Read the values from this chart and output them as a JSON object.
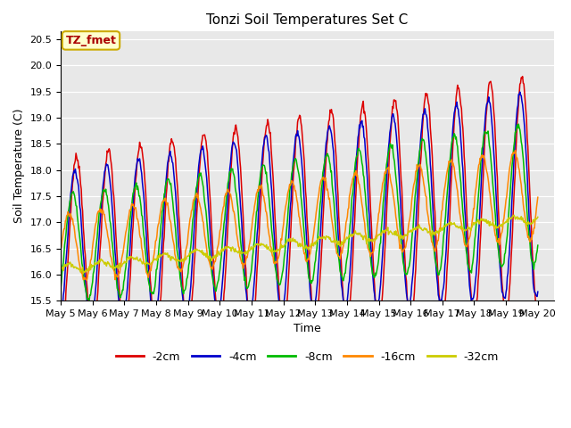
{
  "title": "Tonzi Soil Temperatures Set C",
  "xlabel": "Time",
  "ylabel": "Soil Temperature (C)",
  "ylim": [
    15.5,
    20.65
  ],
  "xlim_days": [
    0,
    15.5
  ],
  "plot_bg": "#e8e8e8",
  "fig_bg": "#ffffff",
  "grid_color": "white",
  "annotation_text": "TZ_fmet",
  "annotation_bg": "#ffffcc",
  "annotation_border": "#ccaa00",
  "annotation_text_color": "#aa0000",
  "series": [
    {
      "label": "-2cm",
      "color": "#dd0000"
    },
    {
      "label": "-4cm",
      "color": "#0000cc"
    },
    {
      "label": "-8cm",
      "color": "#00bb00"
    },
    {
      "label": "-16cm",
      "color": "#ff8800"
    },
    {
      "label": "-32cm",
      "color": "#cccc00"
    }
  ],
  "xtick_labels": [
    "May 5",
    "May 6",
    "May 7",
    "May 8",
    "May 9",
    "May 10",
    "May 11",
    "May 12",
    "May 13",
    "May 14",
    "May 15",
    "May 16",
    "May 17",
    "May 18",
    "May 19",
    "May 20"
  ],
  "xtick_positions": [
    0,
    1,
    2,
    3,
    4,
    5,
    6,
    7,
    8,
    9,
    10,
    11,
    12,
    13,
    14,
    15
  ]
}
